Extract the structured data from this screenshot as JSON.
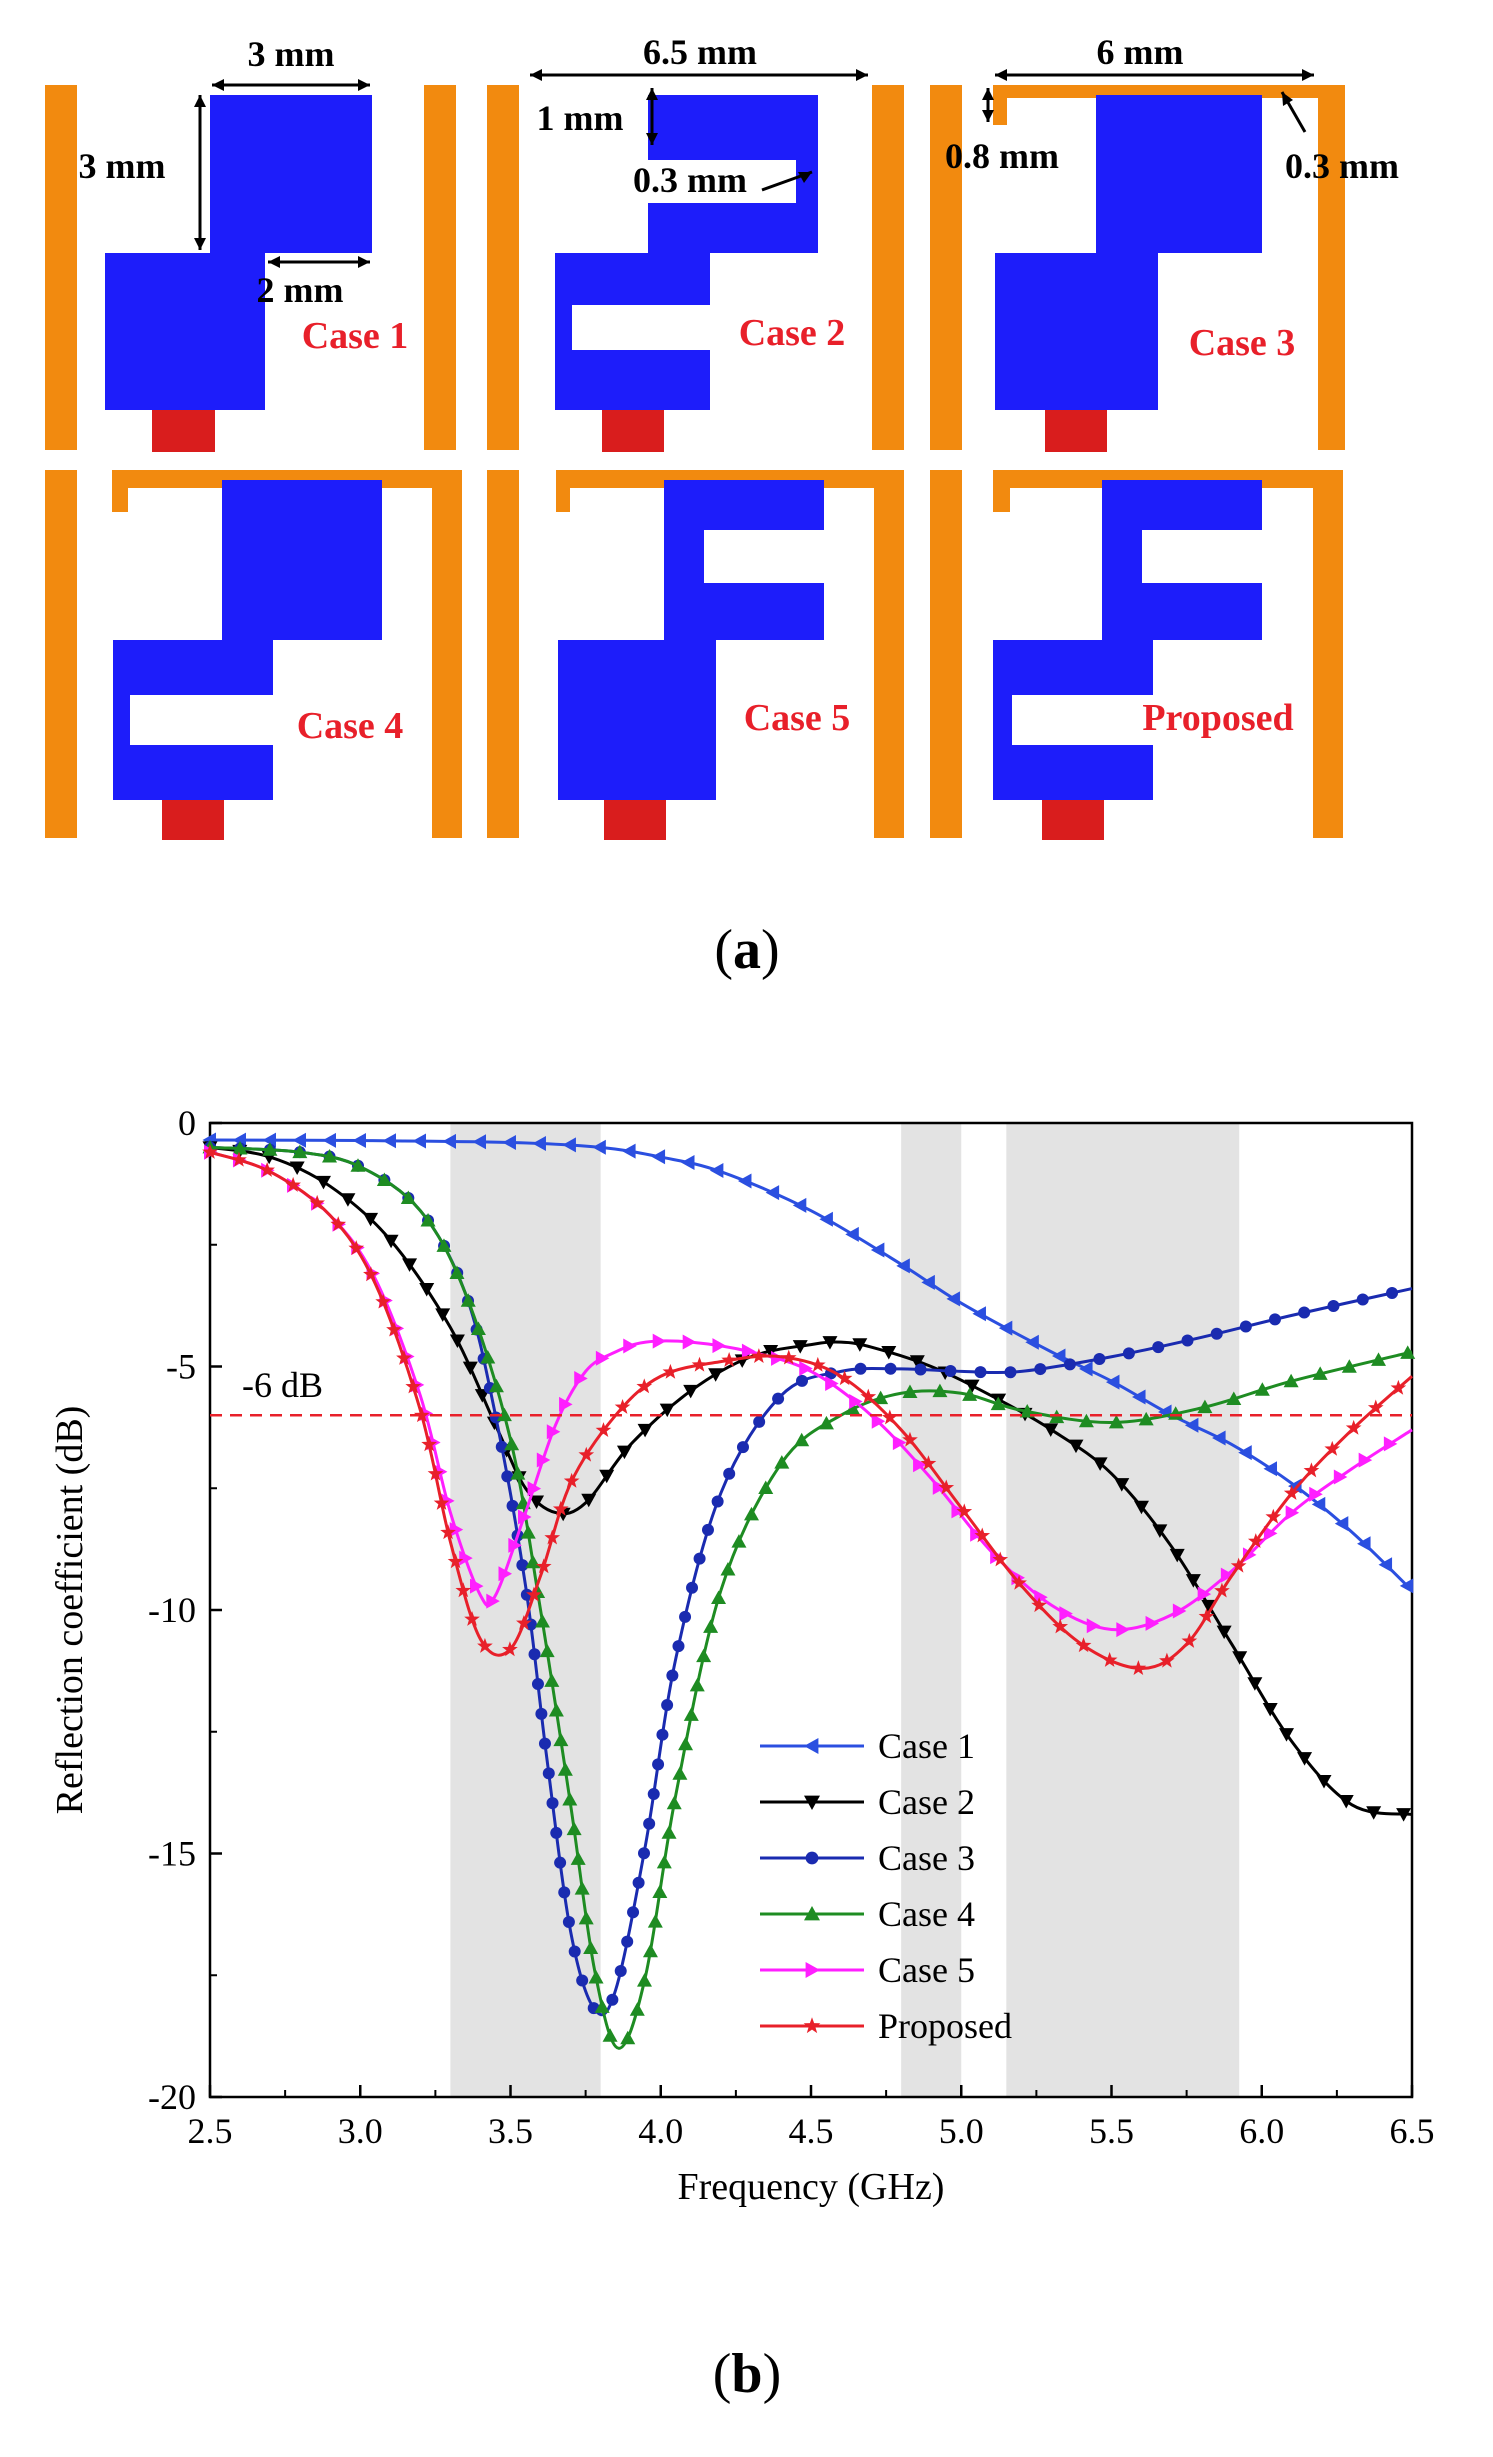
{
  "part_a": {
    "subfigure_label": "a",
    "cases": [
      "Case 1",
      "Case 2",
      "Case 3",
      "Case 4",
      "Case 5",
      "Proposed"
    ],
    "dimensions": {
      "case1_width": "3 mm",
      "case1_height": "3 mm",
      "case1_step": "2 mm",
      "case2_width": "6.5 mm",
      "case2_gap": "1 mm",
      "case2_slot": "0.3 mm",
      "case3_width": "6 mm",
      "case3_gap": "0.8 mm",
      "case3_strip": "0.3 mm"
    },
    "colors": {
      "patch": "#1d1dfa",
      "strip": "#f28a0f",
      "feed": "#d91d1d",
      "label": "#e8202a"
    }
  },
  "part_b": {
    "subfigure_label": "b",
    "reference_label": "-6 dB"
  },
  "chart_data": {
    "type": "line",
    "title": "",
    "xlabel": "Frequency (GHz)",
    "ylabel": "Reflection coefficient (dB)",
    "xlim": [
      2.5,
      6.5
    ],
    "ylim": [
      -20,
      0
    ],
    "xticks": [
      "2.5",
      "3.0",
      "3.5",
      "4.0",
      "4.5",
      "5.0",
      "5.5",
      "6.0",
      "6.5"
    ],
    "yticks": [
      "0",
      "-5",
      "-10",
      "-15",
      "-20"
    ],
    "reference_line": {
      "y": -6,
      "label": "-6 dB",
      "color": "#e8202a"
    },
    "shaded_bands": [
      [
        3.3,
        3.8
      ],
      [
        4.8,
        5.0
      ],
      [
        5.15,
        5.925
      ]
    ],
    "legend_position": "lower-center",
    "series": [
      {
        "name": "Case 1",
        "color": "#2b4fe0",
        "marker": "triangle-left",
        "x": [
          2.5,
          3.0,
          3.5,
          3.8,
          4.0,
          4.2,
          4.5,
          4.8,
          5.0,
          5.3,
          5.5,
          5.7,
          5.9,
          6.1,
          6.3,
          6.5
        ],
        "y": [
          -0.35,
          -0.36,
          -0.4,
          -0.5,
          -0.7,
          -1.0,
          -1.8,
          -2.9,
          -3.7,
          -4.7,
          -5.3,
          -6.0,
          -6.6,
          -7.4,
          -8.4,
          -9.6
        ]
      },
      {
        "name": "Case 2",
        "color": "#000000",
        "marker": "triangle-down",
        "x": [
          2.5,
          2.7,
          2.9,
          3.1,
          3.3,
          3.45,
          3.55,
          3.65,
          3.75,
          3.9,
          4.1,
          4.3,
          4.5,
          4.6,
          4.7,
          4.9,
          5.1,
          5.3,
          5.5,
          5.7,
          5.9,
          6.1,
          6.3,
          6.5
        ],
        "y": [
          -0.5,
          -0.7,
          -1.3,
          -2.4,
          -4.2,
          -6.2,
          -7.5,
          -8.0,
          -7.8,
          -6.6,
          -5.5,
          -4.8,
          -4.55,
          -4.5,
          -4.6,
          -5.0,
          -5.6,
          -6.3,
          -7.2,
          -8.7,
          -10.7,
          -12.7,
          -14.0,
          -14.2
        ]
      },
      {
        "name": "Case 3",
        "color": "#1a2bb0",
        "marker": "circle",
        "x": [
          2.5,
          2.8,
          3.0,
          3.2,
          3.35,
          3.45,
          3.55,
          3.62,
          3.7,
          3.78,
          3.85,
          3.95,
          4.05,
          4.2,
          4.4,
          4.6,
          4.8,
          5.0,
          5.2,
          5.5,
          5.8,
          6.1,
          6.5
        ],
        "y": [
          -0.5,
          -0.6,
          -0.9,
          -1.8,
          -3.5,
          -6.0,
          -9.5,
          -13.0,
          -16.6,
          -18.2,
          -17.8,
          -14.8,
          -11.0,
          -7.6,
          -5.6,
          -5.1,
          -5.05,
          -5.1,
          -5.1,
          -4.8,
          -4.4,
          -3.95,
          -3.4
        ]
      },
      {
        "name": "Case 4",
        "color": "#1e8c22",
        "marker": "triangle-up",
        "x": [
          2.5,
          2.8,
          3.0,
          3.2,
          3.35,
          3.5,
          3.6,
          3.7,
          3.78,
          3.86,
          3.95,
          4.05,
          4.2,
          4.4,
          4.6,
          4.8,
          5.0,
          5.2,
          5.5,
          5.8,
          6.1,
          6.5
        ],
        "y": [
          -0.5,
          -0.6,
          -0.9,
          -1.8,
          -3.5,
          -6.5,
          -10.0,
          -14.0,
          -17.4,
          -19.0,
          -17.5,
          -13.8,
          -9.6,
          -7.0,
          -6.0,
          -5.55,
          -5.55,
          -5.9,
          -6.15,
          -5.85,
          -5.3,
          -4.7
        ]
      },
      {
        "name": "Case 5",
        "color": "#ff1fff",
        "marker": "triangle-right",
        "x": [
          2.5,
          2.7,
          2.9,
          3.05,
          3.2,
          3.3,
          3.4,
          3.45,
          3.55,
          3.65,
          3.75,
          3.85,
          3.95,
          4.1,
          4.3,
          4.5,
          4.7,
          4.9,
          5.1,
          5.3,
          5.5,
          5.7,
          5.9,
          6.1,
          6.3,
          6.5
        ],
        "y": [
          -0.6,
          -1.0,
          -1.9,
          -3.2,
          -5.6,
          -8.0,
          -9.7,
          -9.7,
          -8.0,
          -6.2,
          -5.1,
          -4.7,
          -4.5,
          -4.5,
          -4.7,
          -5.1,
          -6.0,
          -7.3,
          -8.8,
          -9.9,
          -10.4,
          -10.1,
          -9.2,
          -8.0,
          -7.1,
          -6.3
        ]
      },
      {
        "name": "Proposed",
        "color": "#e8202a",
        "marker": "star",
        "x": [
          2.5,
          2.7,
          2.9,
          3.05,
          3.2,
          3.3,
          3.4,
          3.5,
          3.6,
          3.7,
          3.85,
          4.0,
          4.2,
          4.4,
          4.6,
          4.8,
          5.0,
          5.2,
          5.4,
          5.6,
          5.75,
          5.9,
          6.1,
          6.3,
          6.5
        ],
        "y": [
          -0.6,
          -1.0,
          -1.9,
          -3.3,
          -5.9,
          -8.6,
          -10.6,
          -10.8,
          -9.3,
          -7.4,
          -6.0,
          -5.2,
          -4.9,
          -4.8,
          -5.2,
          -6.3,
          -7.9,
          -9.5,
          -10.7,
          -11.2,
          -10.7,
          -9.3,
          -7.6,
          -6.3,
          -5.2
        ]
      }
    ]
  }
}
